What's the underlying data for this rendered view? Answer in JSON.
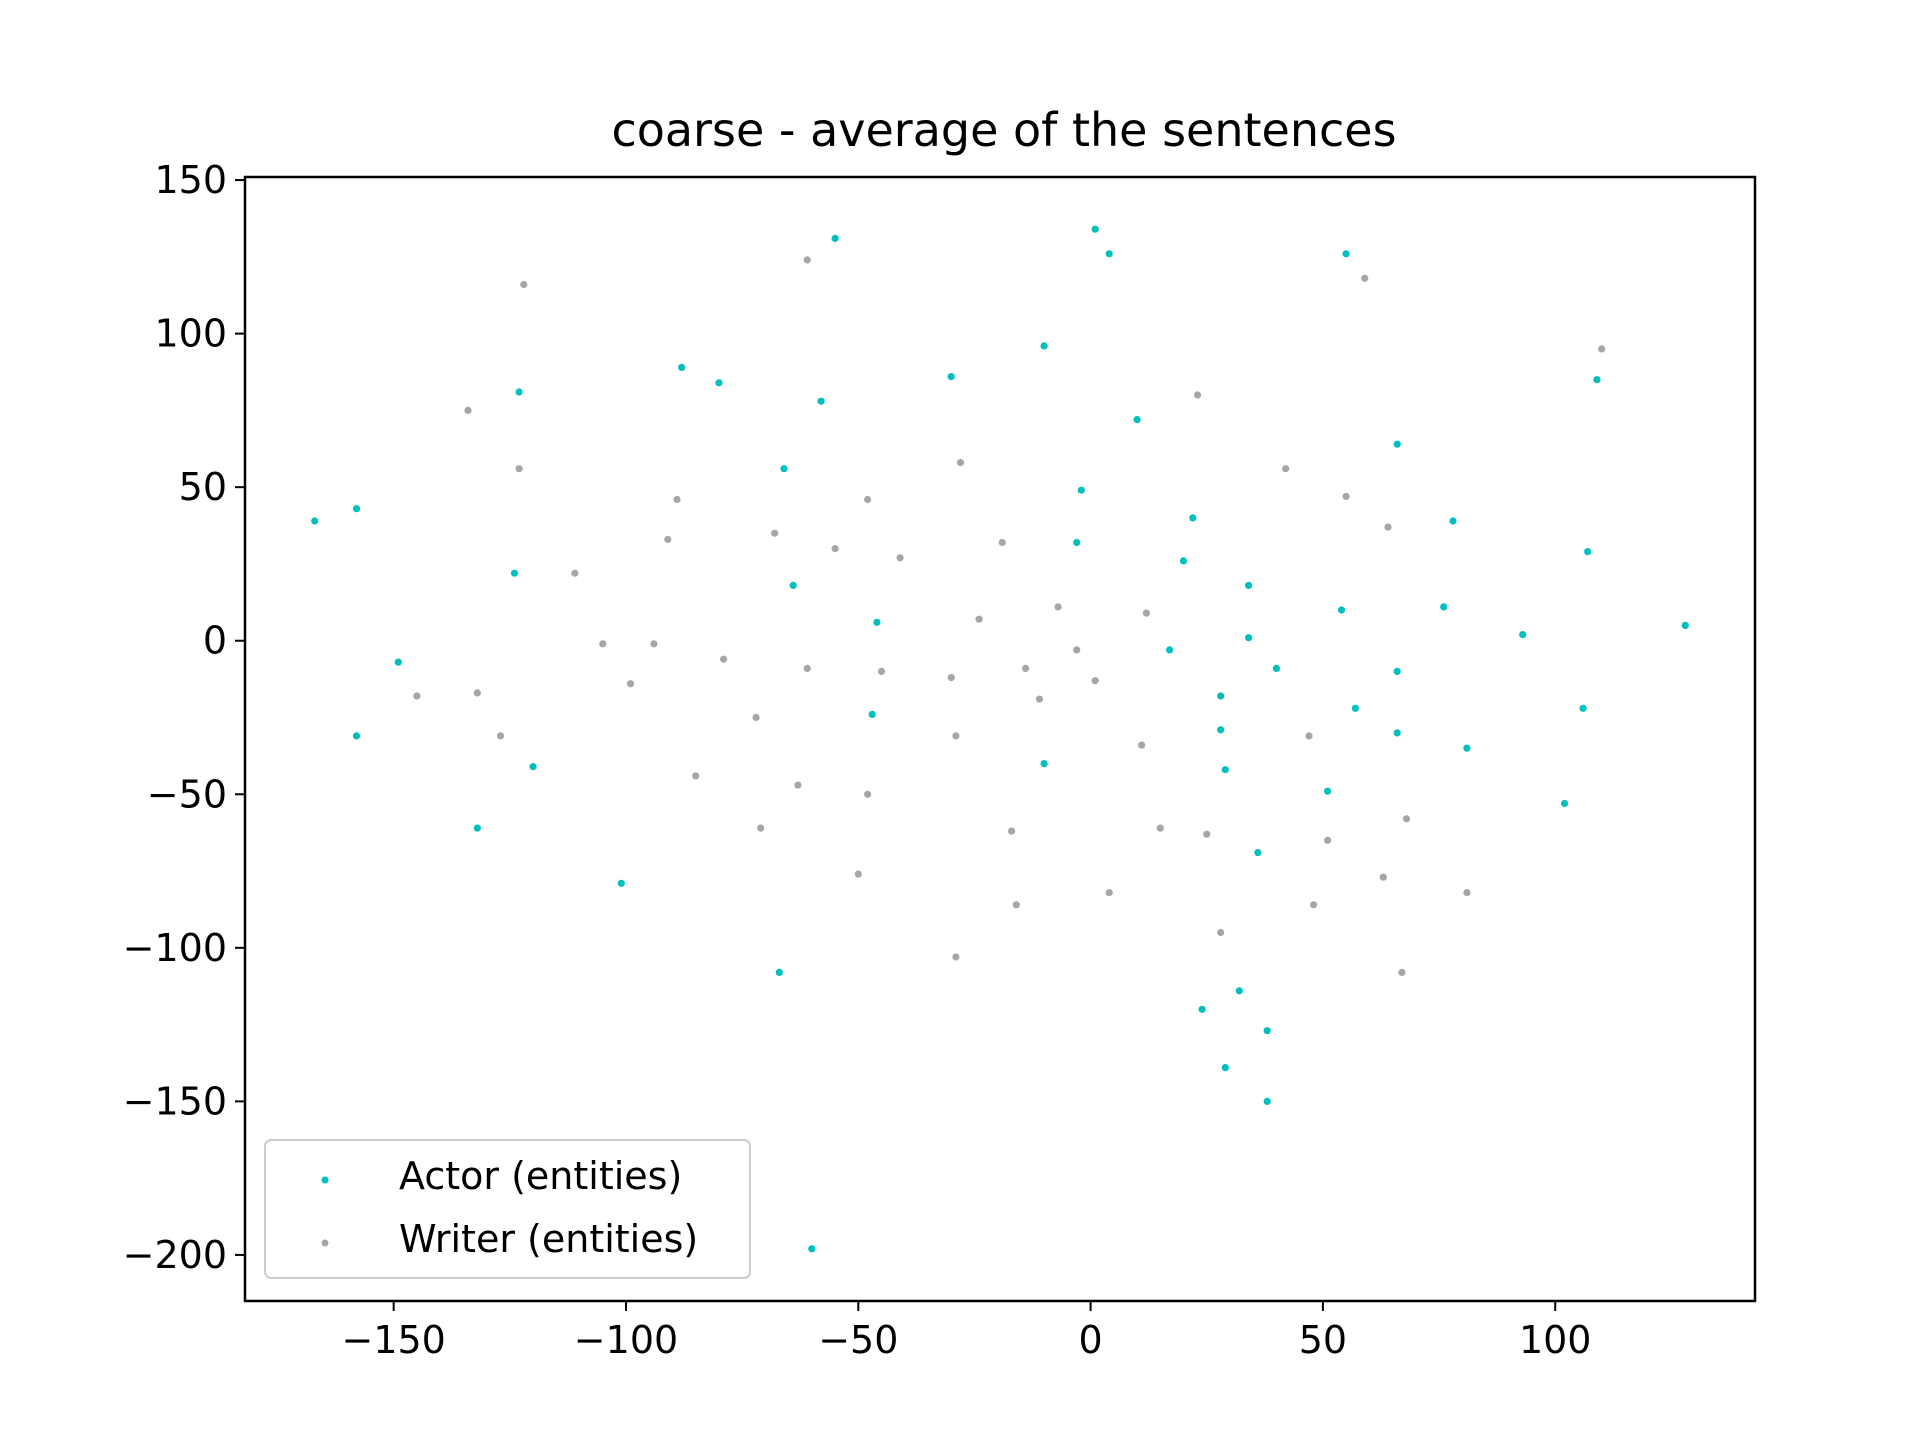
{
  "chart_data": {
    "type": "scatter",
    "title": "coarse - average of the sentences",
    "xlabel": "",
    "ylabel": "",
    "xlim": [
      -182,
      143
    ],
    "ylim": [
      -215,
      151
    ],
    "xticks": [
      -150,
      -100,
      -50,
      0,
      50,
      100
    ],
    "yticks": [
      150,
      100,
      50,
      0,
      -50,
      -100,
      -150,
      -200
    ],
    "xtick_labels": [
      "−150",
      "−100",
      "−50",
      "0",
      "50",
      "100"
    ],
    "ytick_labels": [
      "150",
      "100",
      "50",
      "0",
      "−50",
      "−100",
      "−150",
      "−200"
    ],
    "grid": false,
    "legend_position": "lower-left",
    "series": [
      {
        "name": "Actor (entities)",
        "color": "#00bfbf",
        "points": [
          [
            -55,
            131
          ],
          [
            1,
            134
          ],
          [
            4,
            126
          ],
          [
            55,
            126
          ],
          [
            -10,
            96
          ],
          [
            -30,
            86
          ],
          [
            -80,
            84
          ],
          [
            -88,
            89
          ],
          [
            -58,
            78
          ],
          [
            -123,
            81
          ],
          [
            109,
            85
          ],
          [
            10,
            72
          ],
          [
            66,
            64
          ],
          [
            -66,
            56
          ],
          [
            -167,
            39
          ],
          [
            -158,
            43
          ],
          [
            -2,
            49
          ],
          [
            22,
            40
          ],
          [
            78,
            39
          ],
          [
            -3,
            32
          ],
          [
            107,
            29
          ],
          [
            20,
            26
          ],
          [
            -124,
            22
          ],
          [
            -64,
            18
          ],
          [
            34,
            18
          ],
          [
            76,
            11
          ],
          [
            54,
            10
          ],
          [
            -46,
            6
          ],
          [
            128,
            5
          ],
          [
            93,
            2
          ],
          [
            34,
            1
          ],
          [
            17,
            -3
          ],
          [
            -149,
            -7
          ],
          [
            40,
            -9
          ],
          [
            66,
            -10
          ],
          [
            28,
            -18
          ],
          [
            57,
            -22
          ],
          [
            106,
            -22
          ],
          [
            -47,
            -24
          ],
          [
            28,
            -29
          ],
          [
            66,
            -30
          ],
          [
            -158,
            -31
          ],
          [
            81,
            -35
          ],
          [
            -10,
            -40
          ],
          [
            -120,
            -41
          ],
          [
            29,
            -42
          ],
          [
            51,
            -49
          ],
          [
            102,
            -53
          ],
          [
            -132,
            -61
          ],
          [
            36,
            -69
          ],
          [
            -101,
            -79
          ],
          [
            -67,
            -108
          ],
          [
            32,
            -114
          ],
          [
            24,
            -120
          ],
          [
            38,
            -127
          ],
          [
            29,
            -139
          ],
          [
            38,
            -150
          ],
          [
            -60,
            -198
          ]
        ]
      },
      {
        "name": "Writer (entities)",
        "color": "#a6a6a6",
        "points": [
          [
            -61,
            124
          ],
          [
            -122,
            116
          ],
          [
            59,
            118
          ],
          [
            110,
            95
          ],
          [
            23,
            80
          ],
          [
            -134,
            75
          ],
          [
            -28,
            58
          ],
          [
            42,
            56
          ],
          [
            -123,
            56
          ],
          [
            -89,
            46
          ],
          [
            -48,
            46
          ],
          [
            55,
            47
          ],
          [
            64,
            37
          ],
          [
            -68,
            35
          ],
          [
            -91,
            33
          ],
          [
            -19,
            32
          ],
          [
            -55,
            30
          ],
          [
            -41,
            27
          ],
          [
            -111,
            22
          ],
          [
            -7,
            11
          ],
          [
            -24,
            7
          ],
          [
            12,
            9
          ],
          [
            -105,
            -1
          ],
          [
            -94,
            -1
          ],
          [
            -3,
            -3
          ],
          [
            -79,
            -6
          ],
          [
            -61,
            -9
          ],
          [
            -45,
            -10
          ],
          [
            -14,
            -9
          ],
          [
            -30,
            -12
          ],
          [
            1,
            -13
          ],
          [
            -99,
            -14
          ],
          [
            -145,
            -18
          ],
          [
            -132,
            -17
          ],
          [
            -11,
            -19
          ],
          [
            -72,
            -25
          ],
          [
            -127,
            -31
          ],
          [
            -29,
            -31
          ],
          [
            47,
            -31
          ],
          [
            11,
            -34
          ],
          [
            -85,
            -44
          ],
          [
            -63,
            -47
          ],
          [
            -48,
            -50
          ],
          [
            68,
            -58
          ],
          [
            15,
            -61
          ],
          [
            -71,
            -61
          ],
          [
            -17,
            -62
          ],
          [
            25,
            -63
          ],
          [
            51,
            -65
          ],
          [
            -50,
            -76
          ],
          [
            63,
            -77
          ],
          [
            4,
            -82
          ],
          [
            81,
            -82
          ],
          [
            -16,
            -86
          ],
          [
            48,
            -86
          ],
          [
            28,
            -95
          ],
          [
            -29,
            -103
          ],
          [
            67,
            -108
          ]
        ]
      }
    ]
  }
}
